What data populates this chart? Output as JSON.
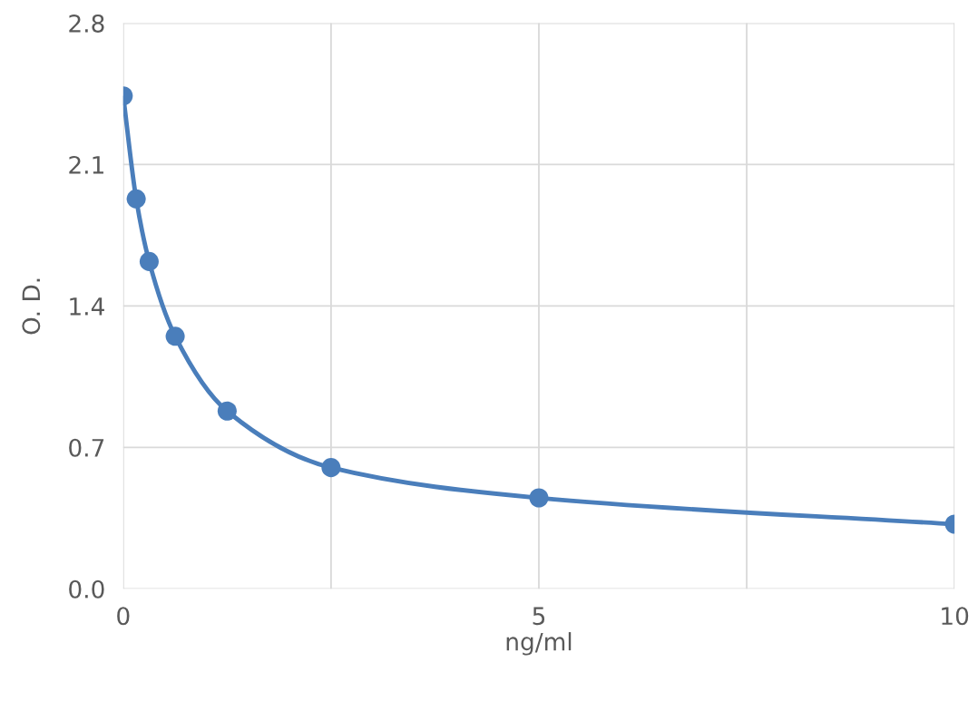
{
  "chart_data": {
    "type": "line",
    "xlabel": "ng/ml",
    "ylabel": "O. D.",
    "x": [
      0,
      0.156,
      0.312,
      0.625,
      1.25,
      2.5,
      5,
      10
    ],
    "series": [
      {
        "color": "#4a7ebb",
        "values": [
          2.44,
          1.93,
          1.62,
          1.25,
          0.88,
          0.6,
          0.45,
          0.32
        ]
      }
    ],
    "xlim": [
      0,
      10
    ],
    "xticks": [
      0,
      {
        "value": 2.5,
        "label": null
      },
      5,
      {
        "value": 7.5,
        "label": null
      },
      10
    ],
    "ylim": [
      0,
      2.8
    ],
    "yticks": [
      {
        "value": 0,
        "label": "0.0"
      },
      0.7,
      1.4,
      2.1,
      2.8
    ],
    "grid": true,
    "marker": "circle",
    "line_style": "solid"
  }
}
